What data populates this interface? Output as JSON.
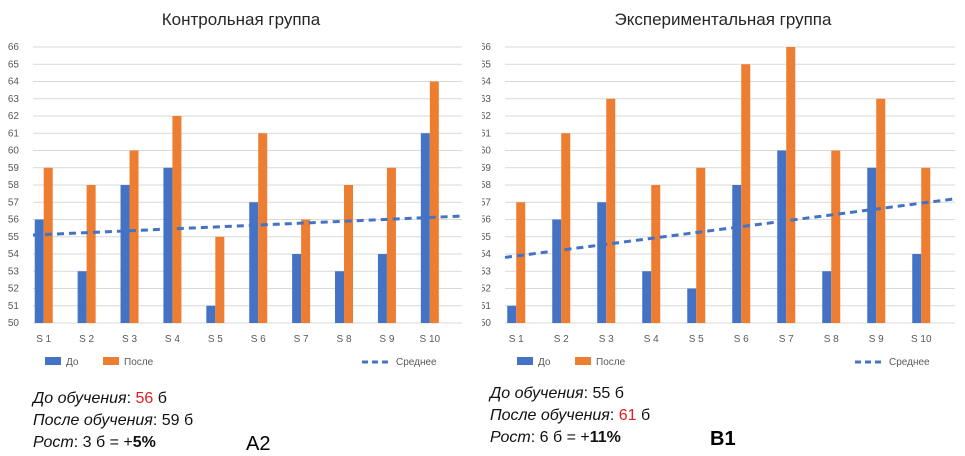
{
  "chart_data": [
    {
      "type": "bar",
      "title": "Контрольная группа",
      "categories": [
        "S 1",
        "S 2",
        "S 3",
        "S 4",
        "S 5",
        "S 6",
        "S 7",
        "S 8",
        "S 9",
        "S 10"
      ],
      "series": [
        {
          "name": "До",
          "values": [
            56,
            53,
            58,
            59,
            51,
            57,
            54,
            53,
            54,
            61
          ],
          "color": "#4472c4"
        },
        {
          "name": "После",
          "values": [
            59,
            58,
            60,
            62,
            55,
            61,
            56,
            58,
            59,
            64
          ],
          "color": "#ed7d31"
        }
      ],
      "trendline": {
        "name": "Среднее",
        "start": 55.1,
        "end": 56.2,
        "color": "#4472c4",
        "style": "dashed"
      },
      "ylim": [
        50,
        66
      ],
      "yticks": [
        "50",
        "51",
        "52",
        "53",
        "54",
        "55",
        "56",
        "57",
        "58",
        "59",
        "60",
        "61",
        "62",
        "63",
        "64",
        "65",
        "66"
      ],
      "grid": true,
      "legend": "bottom"
    },
    {
      "type": "bar",
      "title": "Экспериментальная группа",
      "categories": [
        "S 1",
        "S 2",
        "S 3",
        "S 4",
        "S 5",
        "S 6",
        "S 7",
        "S 8",
        "S 9",
        "S 10"
      ],
      "series": [
        {
          "name": "До",
          "values": [
            51,
            56,
            57,
            53,
            52,
            58,
            60,
            53,
            59,
            54
          ],
          "color": "#4472c4"
        },
        {
          "name": "После",
          "values": [
            57,
            61,
            63,
            58,
            59,
            65,
            66,
            60,
            63,
            59
          ],
          "color": "#ed7d31"
        }
      ],
      "trendline": {
        "name": "Среднее",
        "start": 53.8,
        "end": 57.2,
        "color": "#4472c4",
        "style": "dashed"
      },
      "ylim": [
        50,
        66
      ],
      "yticks": [
        "50",
        "51",
        "52",
        "53",
        "54",
        "55",
        "56",
        "57",
        "58",
        "59",
        "60",
        "61",
        "62",
        "63",
        "64",
        "65",
        "66"
      ],
      "grid": true,
      "legend": "bottom"
    }
  ],
  "left_summary": {
    "before_label": "До обучения",
    "before_value": "56",
    "before_unit": "б",
    "after_label": "После обучения",
    "after_value": "59 б",
    "growth_label": "Рост",
    "growth_value": "3 б = +",
    "growth_percent": "5%",
    "tag": "A2"
  },
  "right_summary": {
    "before_label": "До обучения",
    "before_value": "55 б",
    "after_label": "После обучения",
    "after_value": "61",
    "after_unit": "б",
    "growth_label": "Рост",
    "growth_value": "6 б = +",
    "growth_percent": "11%",
    "tag": "B1"
  }
}
